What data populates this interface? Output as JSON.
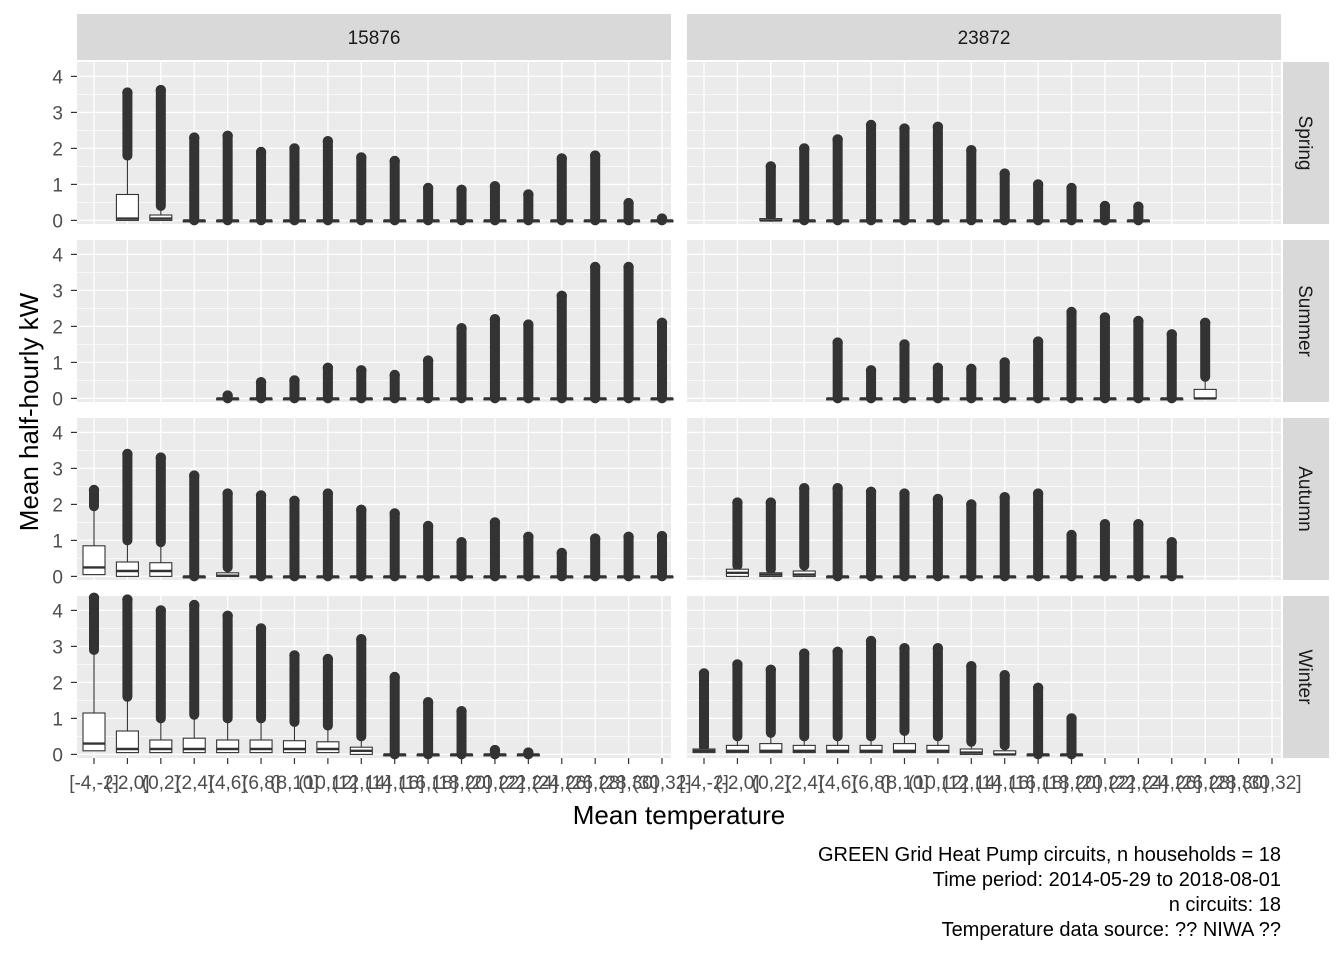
{
  "chart_data": {
    "type": "boxplot",
    "ylabel": "Mean half-hourly kW",
    "xlabel": "Mean temperature",
    "ylim": [
      -0.1,
      4.4
    ],
    "y_ticks": [
      "0",
      "1",
      "2",
      "3",
      "4"
    ],
    "grid": true,
    "facet_cols": [
      "15876",
      "23872"
    ],
    "facet_rows": [
      "Spring",
      "Summer",
      "Autumn",
      "Winter"
    ],
    "categories": [
      "[-4,-2]",
      "(-2,0]",
      "(0,2]",
      "(2,4]",
      "(4,6]",
      "(6,8]",
      "(8,10]",
      "(10,12]",
      "(12,14]",
      "(14,16]",
      "(16,18]",
      "(18,20]",
      "(20,22]",
      "(22,24]",
      "(24,26]",
      "(26,28]",
      "(28,30]",
      "(30,32]"
    ],
    "box_fields": [
      "category_index",
      "q1",
      "median",
      "q3",
      "whisker_high",
      "outlier_max"
    ],
    "panels": [
      {
        "col": "15876",
        "row": "Spring",
        "boxes": [
          [
            1,
            0.0,
            0.05,
            0.72,
            1.8,
            3.55
          ],
          [
            2,
            0.0,
            0.05,
            0.15,
            0.4,
            3.62
          ],
          [
            3,
            0.0,
            0.0,
            0.0,
            0.0,
            2.3
          ],
          [
            4,
            0.0,
            0.0,
            0.0,
            0.0,
            2.35
          ],
          [
            5,
            0.0,
            0.0,
            0.0,
            0.0,
            1.9
          ],
          [
            6,
            0.0,
            0.0,
            0.0,
            0.0,
            2.0
          ],
          [
            7,
            0.0,
            0.0,
            0.0,
            0.0,
            2.2
          ],
          [
            8,
            0.0,
            0.0,
            0.0,
            0.0,
            1.75
          ],
          [
            9,
            0.0,
            0.0,
            0.0,
            0.0,
            1.65
          ],
          [
            10,
            0.0,
            0.0,
            0.0,
            0.0,
            0.9
          ],
          [
            11,
            0.0,
            0.0,
            0.0,
            0.0,
            0.85
          ],
          [
            12,
            0.0,
            0.0,
            0.0,
            0.0,
            0.95
          ],
          [
            13,
            0.0,
            0.0,
            0.0,
            0.0,
            0.72
          ],
          [
            14,
            0.0,
            0.0,
            0.0,
            0.0,
            1.72
          ],
          [
            15,
            0.0,
            0.0,
            0.0,
            0.0,
            1.8
          ],
          [
            16,
            0.0,
            0.0,
            0.0,
            0.0,
            0.48
          ],
          [
            17,
            0.0,
            0.0,
            0.0,
            0.0,
            0.05
          ]
        ]
      },
      {
        "col": "23872",
        "row": "Spring",
        "boxes": [
          [
            2,
            0.0,
            0.0,
            0.05,
            0.1,
            1.5
          ],
          [
            3,
            0.0,
            0.0,
            0.0,
            0.0,
            2.0
          ],
          [
            4,
            0.0,
            0.0,
            0.0,
            0.0,
            2.25
          ],
          [
            5,
            0.0,
            0.0,
            0.0,
            0.0,
            2.65
          ],
          [
            6,
            0.0,
            0.0,
            0.0,
            0.0,
            2.55
          ],
          [
            7,
            0.0,
            0.0,
            0.0,
            0.0,
            2.6
          ],
          [
            8,
            0.0,
            0.0,
            0.0,
            0.0,
            1.95
          ],
          [
            9,
            0.0,
            0.0,
            0.0,
            0.0,
            1.3
          ],
          [
            10,
            0.0,
            0.0,
            0.0,
            0.0,
            1.0
          ],
          [
            11,
            0.0,
            0.0,
            0.0,
            0.0,
            0.9
          ],
          [
            12,
            0.0,
            0.0,
            0.0,
            0.0,
            0.4
          ],
          [
            13,
            0.0,
            0.0,
            0.0,
            0.0,
            0.38
          ]
        ]
      },
      {
        "col": "15876",
        "row": "Summer",
        "boxes": [
          [
            4,
            0.0,
            0.0,
            0.0,
            0.0,
            0.08
          ],
          [
            5,
            0.0,
            0.0,
            0.0,
            0.0,
            0.45
          ],
          [
            6,
            0.0,
            0.0,
            0.0,
            0.0,
            0.5
          ],
          [
            7,
            0.0,
            0.0,
            0.0,
            0.0,
            0.85
          ],
          [
            8,
            0.0,
            0.0,
            0.0,
            0.0,
            0.78
          ],
          [
            9,
            0.0,
            0.0,
            0.0,
            0.0,
            0.65
          ],
          [
            10,
            0.0,
            0.0,
            0.0,
            0.0,
            1.05
          ],
          [
            11,
            0.0,
            0.0,
            0.0,
            0.0,
            1.95
          ],
          [
            12,
            0.0,
            0.0,
            0.0,
            0.0,
            2.2
          ],
          [
            13,
            0.0,
            0.0,
            0.0,
            0.0,
            2.05
          ],
          [
            14,
            0.0,
            0.0,
            0.0,
            0.0,
            2.85
          ],
          [
            15,
            0.0,
            0.0,
            0.0,
            0.0,
            3.65
          ],
          [
            16,
            0.0,
            0.0,
            0.0,
            0.0,
            3.65
          ],
          [
            17,
            0.0,
            0.0,
            0.0,
            0.0,
            2.1
          ]
        ]
      },
      {
        "col": "23872",
        "row": "Summer",
        "boxes": [
          [
            4,
            0.0,
            0.0,
            0.0,
            0.0,
            1.55
          ],
          [
            5,
            0.0,
            0.0,
            0.0,
            0.0,
            0.78
          ],
          [
            6,
            0.0,
            0.0,
            0.0,
            0.0,
            1.5
          ],
          [
            7,
            0.0,
            0.0,
            0.0,
            0.0,
            0.85
          ],
          [
            8,
            0.0,
            0.0,
            0.0,
            0.0,
            0.82
          ],
          [
            9,
            0.0,
            0.0,
            0.0,
            0.0,
            1.0
          ],
          [
            10,
            0.0,
            0.0,
            0.0,
            0.0,
            1.58
          ],
          [
            11,
            0.0,
            0.0,
            0.0,
            0.0,
            2.4
          ],
          [
            12,
            0.0,
            0.0,
            0.0,
            0.0,
            2.25
          ],
          [
            13,
            0.0,
            0.0,
            0.0,
            0.0,
            2.15
          ],
          [
            14,
            0.0,
            0.0,
            0.0,
            0.0,
            1.78
          ],
          [
            15,
            0.0,
            0.0,
            0.25,
            0.6,
            2.1
          ]
        ]
      },
      {
        "col": "15876",
        "row": "Autumn",
        "boxes": [
          [
            0,
            0.05,
            0.25,
            0.85,
            1.95,
            2.4
          ],
          [
            1,
            0.0,
            0.15,
            0.4,
            1.0,
            3.4
          ],
          [
            2,
            0.0,
            0.15,
            0.38,
            0.95,
            3.3
          ],
          [
            3,
            0.0,
            0.0,
            0.0,
            0.0,
            2.8
          ],
          [
            4,
            0.0,
            0.02,
            0.1,
            0.25,
            2.3
          ],
          [
            5,
            0.0,
            0.0,
            0.0,
            0.0,
            2.25
          ],
          [
            6,
            0.0,
            0.0,
            0.0,
            0.0,
            2.1
          ],
          [
            7,
            0.0,
            0.0,
            0.0,
            0.0,
            2.3
          ],
          [
            8,
            0.0,
            0.0,
            0.0,
            0.0,
            1.85
          ],
          [
            9,
            0.0,
            0.0,
            0.0,
            0.0,
            1.75
          ],
          [
            10,
            0.0,
            0.0,
            0.0,
            0.0,
            1.4
          ],
          [
            11,
            0.0,
            0.0,
            0.0,
            0.0,
            0.95
          ],
          [
            12,
            0.0,
            0.0,
            0.0,
            0.0,
            1.5
          ],
          [
            13,
            0.0,
            0.0,
            0.0,
            0.0,
            1.1
          ],
          [
            14,
            0.0,
            0.0,
            0.0,
            0.0,
            0.65
          ],
          [
            15,
            0.0,
            0.0,
            0.0,
            0.0,
            1.05
          ],
          [
            16,
            0.0,
            0.0,
            0.0,
            0.0,
            1.1
          ],
          [
            17,
            0.0,
            0.0,
            0.0,
            0.0,
            1.12
          ]
        ]
      },
      {
        "col": "23872",
        "row": "Autumn",
        "boxes": [
          [
            1,
            0.0,
            0.1,
            0.2,
            0.3,
            2.05
          ],
          [
            2,
            0.0,
            0.05,
            0.1,
            0.2,
            2.05
          ],
          [
            3,
            0.0,
            0.05,
            0.15,
            0.3,
            2.45
          ],
          [
            4,
            0.0,
            0.0,
            0.0,
            0.0,
            2.45
          ],
          [
            5,
            0.0,
            0.0,
            0.0,
            0.0,
            2.35
          ],
          [
            6,
            0.0,
            0.0,
            0.0,
            0.0,
            2.3
          ],
          [
            7,
            0.0,
            0.0,
            0.0,
            0.0,
            2.15
          ],
          [
            8,
            0.0,
            0.0,
            0.0,
            0.0,
            2.0
          ],
          [
            9,
            0.0,
            0.0,
            0.0,
            0.0,
            2.2
          ],
          [
            10,
            0.0,
            0.0,
            0.0,
            0.0,
            2.3
          ],
          [
            11,
            0.0,
            0.0,
            0.0,
            0.0,
            1.15
          ],
          [
            12,
            0.0,
            0.0,
            0.0,
            0.0,
            1.45
          ],
          [
            13,
            0.0,
            0.0,
            0.0,
            0.0,
            1.45
          ],
          [
            14,
            0.0,
            0.0,
            0.0,
            0.0,
            0.95
          ]
        ]
      },
      {
        "col": "15876",
        "row": "Winter",
        "boxes": [
          [
            0,
            0.1,
            0.3,
            1.15,
            2.9,
            4.35
          ],
          [
            1,
            0.05,
            0.15,
            0.65,
            1.6,
            4.3
          ],
          [
            2,
            0.05,
            0.15,
            0.4,
            1.0,
            4.0
          ],
          [
            3,
            0.05,
            0.15,
            0.45,
            1.1,
            4.15
          ],
          [
            4,
            0.05,
            0.15,
            0.4,
            1.0,
            3.85
          ],
          [
            5,
            0.05,
            0.15,
            0.4,
            1.0,
            3.5
          ],
          [
            6,
            0.05,
            0.15,
            0.38,
            0.9,
            2.75
          ],
          [
            7,
            0.05,
            0.15,
            0.35,
            0.8,
            2.65
          ],
          [
            8,
            0.0,
            0.1,
            0.2,
            0.5,
            3.2
          ],
          [
            9,
            0.0,
            0.0,
            0.0,
            0.0,
            2.15
          ],
          [
            10,
            0.0,
            0.0,
            0.0,
            0.0,
            1.45
          ],
          [
            11,
            0.0,
            0.0,
            0.0,
            0.0,
            1.2
          ],
          [
            12,
            0.0,
            0.0,
            0.0,
            0.0,
            0.12
          ],
          [
            13,
            0.0,
            0.0,
            0.0,
            0.0,
            0.05
          ]
        ]
      },
      {
        "col": "23872",
        "row": "Winter",
        "boxes": [
          [
            0,
            0.05,
            0.1,
            0.15,
            0.2,
            2.25
          ],
          [
            1,
            0.05,
            0.1,
            0.25,
            0.5,
            2.5
          ],
          [
            2,
            0.05,
            0.1,
            0.3,
            0.6,
            2.35
          ],
          [
            3,
            0.05,
            0.1,
            0.25,
            0.5,
            2.8
          ],
          [
            4,
            0.05,
            0.1,
            0.25,
            0.5,
            2.85
          ],
          [
            5,
            0.05,
            0.1,
            0.25,
            0.5,
            3.15
          ],
          [
            6,
            0.05,
            0.1,
            0.3,
            0.65,
            2.95
          ],
          [
            7,
            0.05,
            0.1,
            0.25,
            0.5,
            2.95
          ],
          [
            8,
            0.0,
            0.05,
            0.15,
            0.35,
            2.45
          ],
          [
            9,
            0.0,
            0.0,
            0.1,
            0.25,
            2.2
          ],
          [
            10,
            0.0,
            0.0,
            0.0,
            0.0,
            1.85
          ],
          [
            11,
            0.0,
            0.0,
            0.0,
            0.0,
            1.0
          ]
        ]
      }
    ],
    "caption": [
      "GREEN Grid Heat Pump circuits, n households = 18",
      "Time period: 2014-05-29 to 2018-08-01",
      "n circuits: 18",
      "Temperature data source: ?? NIWA ??"
    ],
    "colors": {
      "panel_bg": "#EBEBEB",
      "strip_bg": "#D9D9D9",
      "grid_major": "#FFFFFF",
      "box_line": "#333333",
      "box_fill": "#FFFFFF",
      "outlier": "#333333"
    }
  }
}
